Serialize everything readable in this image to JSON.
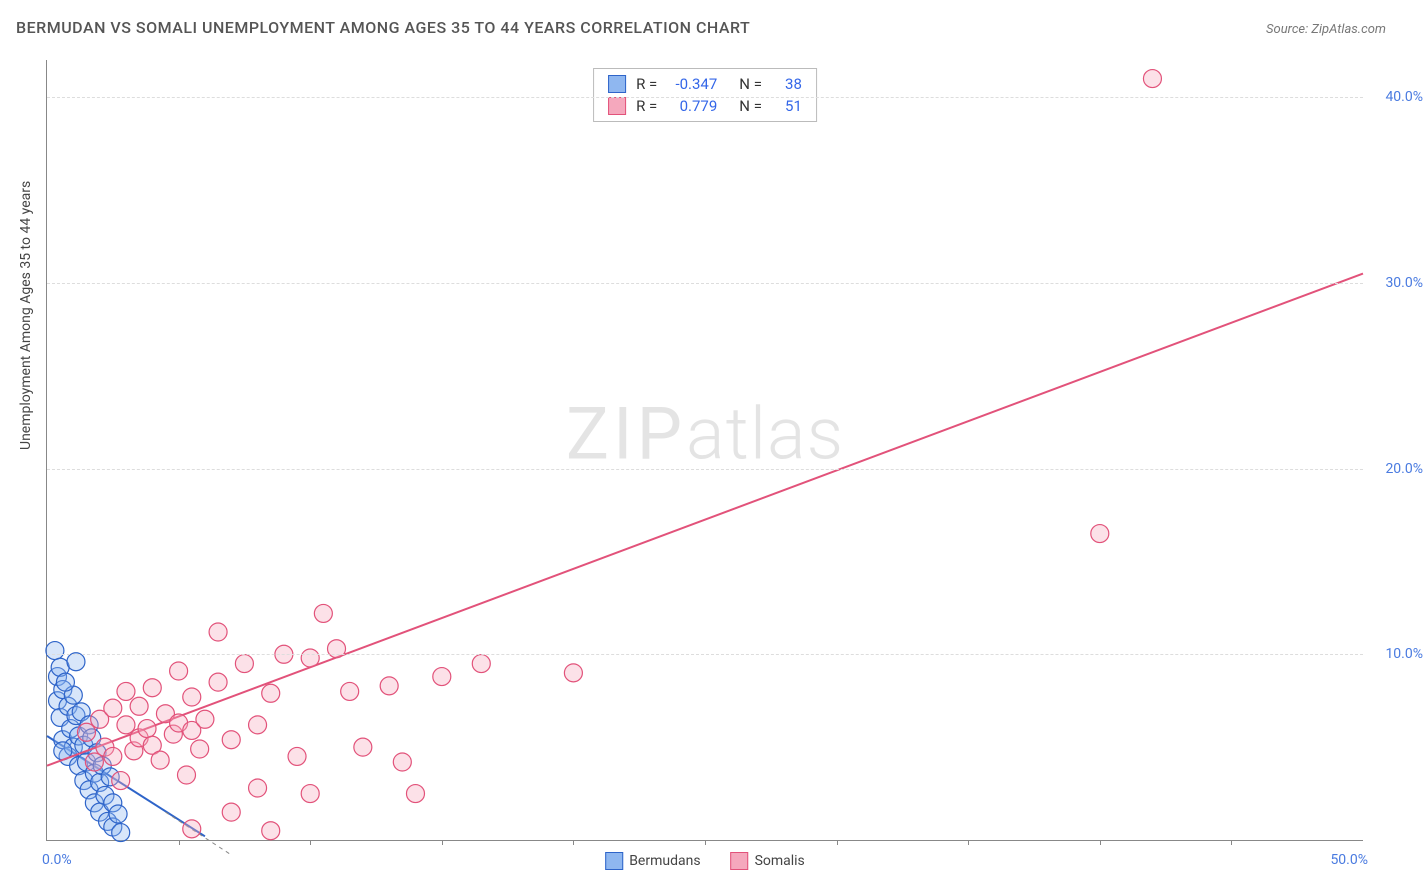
{
  "title": "BERMUDAN VS SOMALI UNEMPLOYMENT AMONG AGES 35 TO 44 YEARS CORRELATION CHART",
  "source_label": "Source: ZipAtlas.com",
  "y_axis_title": "Unemployment Among Ages 35 to 44 years",
  "watermark_a": "ZIP",
  "watermark_b": "atlas",
  "chart": {
    "type": "scatter",
    "xlim": [
      0,
      50
    ],
    "ylim": [
      0,
      42
    ],
    "x_tick_labels": {
      "left": "0.0%",
      "right": "50.0%"
    },
    "y_ticks": [
      {
        "v": 10,
        "label": "10.0%"
      },
      {
        "v": 20,
        "label": "20.0%"
      },
      {
        "v": 30,
        "label": "30.0%"
      },
      {
        "v": 40,
        "label": "40.0%"
      }
    ],
    "x_minor_ticks": [
      5,
      10,
      15,
      20,
      25,
      30,
      35,
      40,
      45
    ],
    "plot_bg": "#ffffff",
    "grid_color": "#dddddd",
    "axis_color": "#888888",
    "marker_radius": 9,
    "series": [
      {
        "name": "Bermudans",
        "fill": "#8fb7f0",
        "stroke": "#2e64c9",
        "R": "-0.347",
        "N": "38",
        "regression": {
          "x1": 0,
          "y1": 5.6,
          "x2": 6,
          "y2": 0.2,
          "dashed_tail": {
            "x1": 4.5,
            "y1": 1.5,
            "x2": 7,
            "y2": -0.8
          }
        },
        "points": [
          [
            0.3,
            10.2
          ],
          [
            0.4,
            8.8
          ],
          [
            0.4,
            7.5
          ],
          [
            0.5,
            9.3
          ],
          [
            0.5,
            6.6
          ],
          [
            0.6,
            8.1
          ],
          [
            0.6,
            5.4
          ],
          [
            0.8,
            7.2
          ],
          [
            0.8,
            4.5
          ],
          [
            0.9,
            6.0
          ],
          [
            1.0,
            7.8
          ],
          [
            1.0,
            5.0
          ],
          [
            1.1,
            6.7
          ],
          [
            1.2,
            4.0
          ],
          [
            1.2,
            5.6
          ],
          [
            1.3,
            6.9
          ],
          [
            1.4,
            3.2
          ],
          [
            1.4,
            5.1
          ],
          [
            1.5,
            4.2
          ],
          [
            1.6,
            6.2
          ],
          [
            1.6,
            2.7
          ],
          [
            1.7,
            5.5
          ],
          [
            1.8,
            3.6
          ],
          [
            1.8,
            2.0
          ],
          [
            1.9,
            4.7
          ],
          [
            2.0,
            3.1
          ],
          [
            2.0,
            1.5
          ],
          [
            2.1,
            4.0
          ],
          [
            2.2,
            2.4
          ],
          [
            2.3,
            1.0
          ],
          [
            2.4,
            3.4
          ],
          [
            2.5,
            2.0
          ],
          [
            2.5,
            0.7
          ],
          [
            2.7,
            1.4
          ],
          [
            2.8,
            0.4
          ],
          [
            1.1,
            9.6
          ],
          [
            0.7,
            8.5
          ],
          [
            0.6,
            4.8
          ]
        ]
      },
      {
        "name": "Somalis",
        "fill": "#f5a8bd",
        "stroke": "#e2527a",
        "R": "0.779",
        "N": "51",
        "regression": {
          "x1": 0,
          "y1": 4.0,
          "x2": 50,
          "y2": 30.5
        },
        "points": [
          [
            1.5,
            5.8
          ],
          [
            1.8,
            4.2
          ],
          [
            2.0,
            6.5
          ],
          [
            2.2,
            5.0
          ],
          [
            2.5,
            7.1
          ],
          [
            2.5,
            4.5
          ],
          [
            2.8,
            3.2
          ],
          [
            3.0,
            6.2
          ],
          [
            3.0,
            8.0
          ],
          [
            3.3,
            4.8
          ],
          [
            3.5,
            5.5
          ],
          [
            3.5,
            7.2
          ],
          [
            3.8,
            6.0
          ],
          [
            4.0,
            5.1
          ],
          [
            4.0,
            8.2
          ],
          [
            4.3,
            4.3
          ],
          [
            4.5,
            6.8
          ],
          [
            4.8,
            5.7
          ],
          [
            5.0,
            6.3
          ],
          [
            5.0,
            9.1
          ],
          [
            5.3,
            3.5
          ],
          [
            5.5,
            5.9
          ],
          [
            5.5,
            7.7
          ],
          [
            5.8,
            4.9
          ],
          [
            6.0,
            6.5
          ],
          [
            6.5,
            8.5
          ],
          [
            6.5,
            11.2
          ],
          [
            7.0,
            5.4
          ],
          [
            7.0,
            1.5
          ],
          [
            7.5,
            9.5
          ],
          [
            8.0,
            6.2
          ],
          [
            8.0,
            2.8
          ],
          [
            8.5,
            7.9
          ],
          [
            9.0,
            10.0
          ],
          [
            9.5,
            4.5
          ],
          [
            10.0,
            9.8
          ],
          [
            10.0,
            2.5
          ],
          [
            10.5,
            12.2
          ],
          [
            11.0,
            10.3
          ],
          [
            11.5,
            8.0
          ],
          [
            12.0,
            5.0
          ],
          [
            13.0,
            8.3
          ],
          [
            13.5,
            4.2
          ],
          [
            14.0,
            2.5
          ],
          [
            15.0,
            8.8
          ],
          [
            16.5,
            9.5
          ],
          [
            20.0,
            9.0
          ],
          [
            5.5,
            0.6
          ],
          [
            8.5,
            0.5
          ],
          [
            40.0,
            16.5
          ],
          [
            42.0,
            41.0
          ]
        ]
      }
    ],
    "legend_bottom": [
      {
        "label": "Bermudans",
        "fill": "#8fb7f0",
        "stroke": "#2e64c9"
      },
      {
        "label": "Somalis",
        "fill": "#f5a8bd",
        "stroke": "#e2527a"
      }
    ]
  }
}
